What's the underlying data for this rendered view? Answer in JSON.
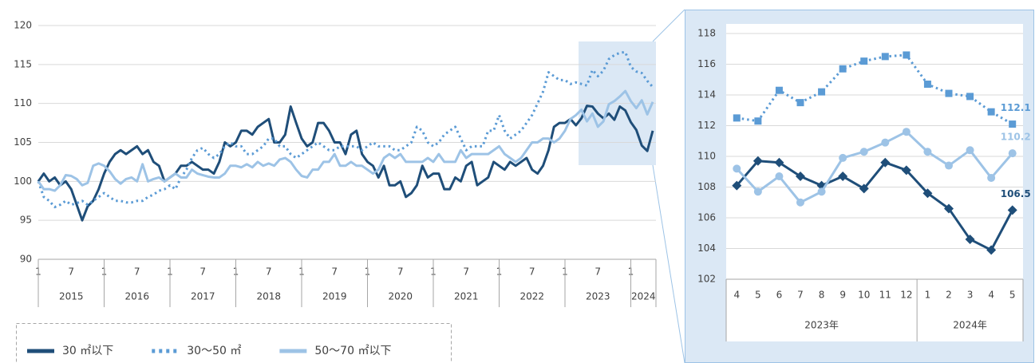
{
  "chart_data": [
    {
      "type": "line",
      "categories": [
        "1",
        null,
        null,
        null,
        null,
        null,
        "7",
        null,
        null,
        null,
        null,
        null,
        "1",
        null,
        null,
        null,
        null,
        null,
        "7",
        null,
        null,
        null,
        null,
        null,
        "1",
        null,
        null,
        null,
        null,
        null,
        "7",
        null,
        null,
        null,
        null,
        null,
        "1",
        null,
        null,
        null,
        null,
        null,
        "7",
        null,
        null,
        null,
        null,
        null,
        "1",
        null,
        null,
        null,
        null,
        null,
        "7",
        null,
        null,
        null,
        null,
        null,
        "1",
        null,
        null,
        null,
        null,
        null,
        "7",
        null,
        null,
        null,
        null,
        null,
        "1",
        null,
        null,
        null,
        null,
        null,
        "7",
        null,
        null,
        null,
        null,
        null,
        "1",
        null,
        null,
        null,
        null,
        null,
        "7",
        null,
        null,
        null,
        null,
        null,
        "1",
        null,
        null,
        null,
        null,
        null,
        "7",
        null,
        null,
        null,
        null,
        null,
        "1",
        null,
        null,
        null,
        null
      ],
      "year_labels": [
        "2015",
        "2016",
        "2017",
        "2018",
        "2019",
        "2020",
        "2021",
        "2022",
        "2023",
        "2024"
      ],
      "ylim": [
        90,
        120
      ],
      "yticks": [
        90,
        95,
        100,
        105,
        110,
        115,
        120
      ],
      "grid": true,
      "legend": "bottom-left",
      "series": [
        {
          "name": "30 ㎡以下",
          "color": "#1f4e79",
          "style": "solid",
          "values": [
            100,
            101,
            100,
            100.5,
            99.5,
            100,
            99,
            97,
            95,
            96.8,
            97.5,
            99,
            101,
            102.5,
            103.5,
            104,
            103.5,
            104,
            104.5,
            103.5,
            104,
            102.5,
            102,
            100,
            100.5,
            101,
            102,
            102,
            102.5,
            102,
            101.5,
            101.5,
            101,
            102.5,
            105,
            104.5,
            105,
            106.5,
            106.5,
            106,
            107,
            107.5,
            108,
            105,
            105,
            106,
            109.6,
            107.5,
            105.5,
            104.5,
            105,
            107.5,
            107.5,
            106.5,
            105,
            105,
            103.5,
            106,
            106.5,
            103.5,
            102.5,
            102,
            100.5,
            102,
            99.5,
            99.5,
            100,
            98,
            98.5,
            99.5,
            102,
            100.5,
            101,
            101,
            99,
            99,
            100.5,
            100,
            102,
            102.5,
            99.5,
            100,
            100.5,
            102.5,
            102,
            101.5,
            102.5,
            102,
            102.5,
            103,
            101.5,
            101,
            102,
            104,
            107,
            107.5,
            107.5,
            108,
            107.2,
            108.1,
            109.7,
            109.6,
            108.7,
            108.1,
            108.7,
            107.9,
            109.6,
            109.1,
            107.6,
            106.6,
            104.6,
            103.9,
            106.5
          ]
        },
        {
          "name": "30～50 ㎡",
          "color": "#5b9bd5",
          "style": "dotted",
          "values": [
            100,
            98,
            97.5,
            96.7,
            97,
            97.5,
            97,
            97.2,
            97.5,
            97,
            97.5,
            98,
            98.5,
            98,
            97.5,
            97.5,
            97.3,
            97.3,
            97.5,
            97.5,
            98,
            98.3,
            98.8,
            99,
            99.5,
            99,
            100.5,
            101.5,
            103,
            104,
            104.3,
            103.5,
            103,
            103.5,
            104.5,
            105,
            104.5,
            104.5,
            103.5,
            103.5,
            104,
            104.5,
            105.5,
            105.5,
            104.5,
            104.5,
            103.5,
            103,
            103.5,
            104,
            104.5,
            105,
            104.5,
            104,
            104,
            104.5,
            104.5,
            104.5,
            104.5,
            104,
            104.5,
            105,
            104.5,
            104.5,
            104.5,
            104,
            104,
            104.5,
            105,
            107,
            106.5,
            105,
            104.5,
            105,
            106,
            106.5,
            107,
            105.5,
            104,
            104.5,
            104.5,
            104.5,
            106.5,
            106.5,
            108.5,
            106.5,
            105.5,
            106,
            106.5,
            107.5,
            108.5,
            110,
            111.5,
            114,
            113.5,
            113,
            113,
            112.5,
            112.7,
            112.5,
            112.3,
            114.3,
            113.5,
            114.2,
            115.7,
            116.2,
            116.5,
            116.6,
            114.7,
            114.1,
            113.9,
            112.9,
            112.1
          ]
        },
        {
          "name": "50～70 ㎡以下",
          "color": "#9dc3e6",
          "style": "solid",
          "values": [
            100,
            99,
            99,
            98.8,
            99.5,
            100.8,
            100.7,
            100.3,
            99.5,
            99.8,
            102,
            102.3,
            102,
            101.3,
            100.3,
            99.7,
            100.3,
            100.5,
            100,
            102.2,
            100,
            100.3,
            100.5,
            100,
            100.5,
            101,
            100.5,
            100.5,
            101.5,
            101,
            100.8,
            100.6,
            100.5,
            100.5,
            101,
            102,
            102,
            101.8,
            102.2,
            101.8,
            102.5,
            102,
            102.3,
            102,
            102.8,
            103,
            102.5,
            101.5,
            100.7,
            100.5,
            101.5,
            101.5,
            102.5,
            102.5,
            103.5,
            102,
            102,
            102.5,
            102,
            102,
            101.5,
            101,
            101.5,
            103,
            103.5,
            103,
            103.5,
            102.5,
            102.5,
            102.5,
            102.5,
            103,
            102.5,
            103.5,
            102.5,
            102.5,
            102.5,
            104,
            103,
            103.5,
            103.5,
            103.5,
            103.5,
            104,
            104.5,
            103.5,
            103,
            102.5,
            103,
            104,
            105,
            105,
            105.5,
            105.5,
            105,
            105.5,
            106.5,
            108,
            108.5,
            109.2,
            107.7,
            108.7,
            107,
            107.7,
            109.9,
            110.3,
            110.9,
            111.6,
            110.3,
            109.4,
            110.4,
            108.6,
            110.2
          ]
        }
      ]
    },
    {
      "type": "line",
      "categories": [
        "4",
        "5",
        "6",
        "7",
        "8",
        "9",
        "10",
        "11",
        "12",
        "1",
        "2",
        "3",
        "4",
        "5"
      ],
      "year_labels": [
        "2023年",
        "2024年"
      ],
      "ylim": [
        102,
        118
      ],
      "yticks": [
        102,
        104,
        106,
        108,
        110,
        112,
        114,
        116,
        118
      ],
      "grid": true,
      "data_labels": "last",
      "series": [
        {
          "color": "#1f4e79",
          "style": "solid",
          "marker": "diamond",
          "values": [
            108.1,
            109.7,
            109.6,
            108.7,
            108.1,
            108.7,
            107.9,
            109.6,
            109.1,
            107.6,
            106.6,
            104.6,
            103.9,
            106.5
          ]
        },
        {
          "color": "#5b9bd5",
          "style": "dotted",
          "marker": "square",
          "values": [
            112.5,
            112.3,
            114.3,
            113.5,
            114.2,
            115.7,
            116.2,
            116.5,
            116.6,
            114.7,
            114.1,
            113.9,
            112.9,
            112.1
          ]
        },
        {
          "color": "#9dc3e6",
          "style": "solid",
          "marker": "circle",
          "values": [
            109.2,
            107.7,
            108.7,
            107.0,
            107.7,
            109.9,
            110.3,
            110.9,
            111.6,
            110.3,
            109.4,
            110.4,
            108.6,
            110.2
          ]
        }
      ]
    }
  ]
}
